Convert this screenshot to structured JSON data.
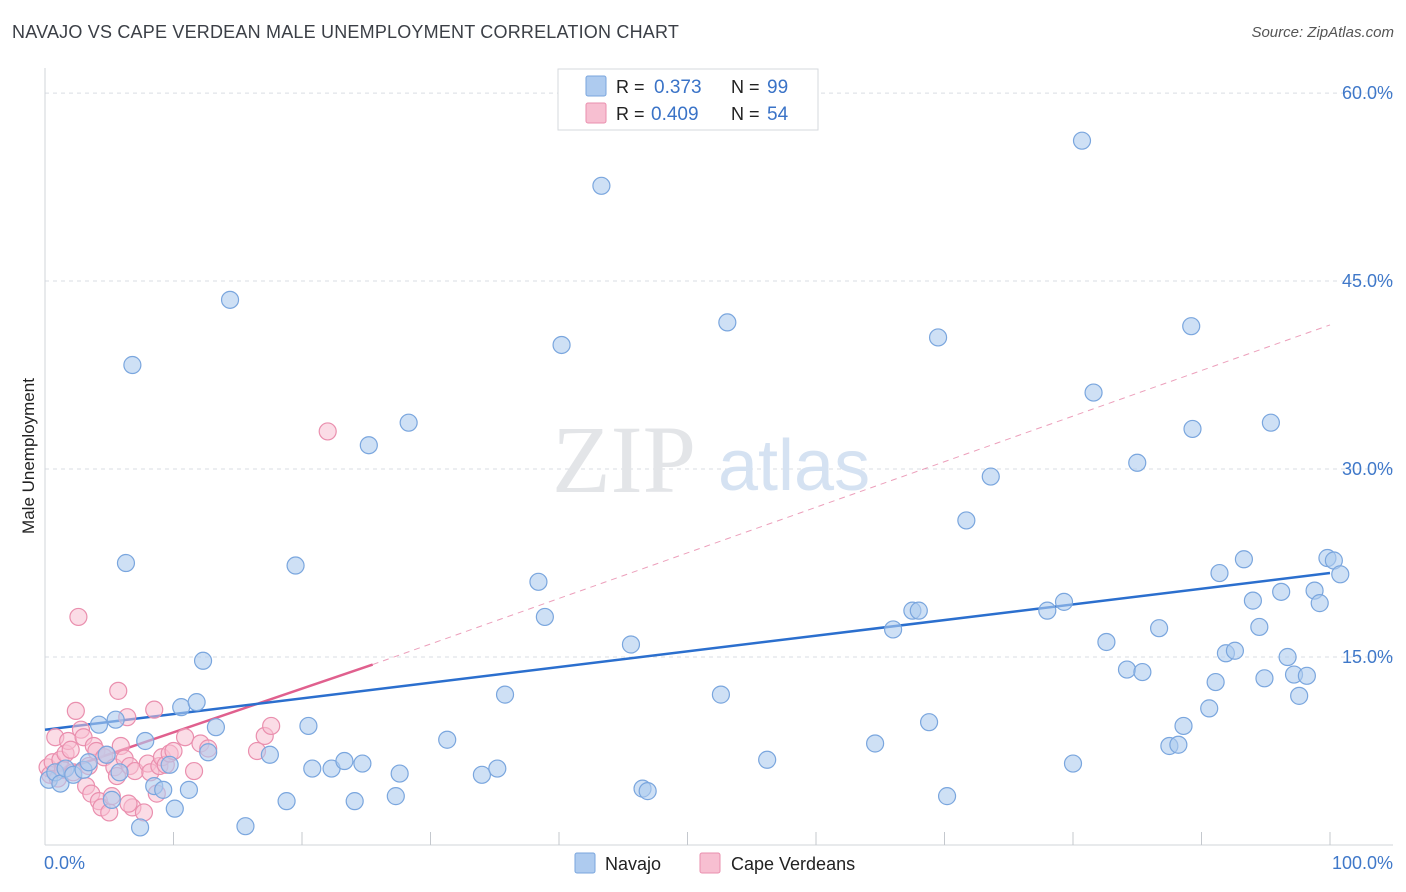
{
  "title": "NAVAJO VS CAPE VERDEAN MALE UNEMPLOYMENT CORRELATION CHART",
  "source": "Source: ZipAtlas.com",
  "watermark": {
    "zip": "ZIP",
    "atlas": "atlas"
  },
  "colors": {
    "navajo_fill": "#aecbef",
    "navajo_stroke": "#7aa6de",
    "navajo_line": "#2b6fce",
    "cape_fill": "#f7bfd1",
    "cape_stroke": "#ea8fae",
    "cape_line": "#e0608e",
    "tick_text": "#3f78c9",
    "grid": "#d9dde3"
  },
  "legend_top": {
    "rows": [
      {
        "r_label": "R =",
        "r_value": "0.373",
        "n_label": "N =",
        "n_value": "99"
      },
      {
        "r_label": "R =",
        "r_value": "0.409",
        "n_label": "N =",
        "n_value": "54"
      }
    ]
  },
  "legend_bottom": {
    "navajo": "Navajo",
    "cape": "Cape Verdeans"
  },
  "chart_data": {
    "type": "scatter",
    "title": "NAVAJO VS CAPE VERDEAN MALE UNEMPLOYMENT CORRELATION CHART",
    "xlabel": "",
    "ylabel": "Male Unemployment",
    "xlim": [
      0,
      100
    ],
    "ylim": [
      0,
      62
    ],
    "x_tick_labels": [
      "0.0%",
      "100.0%"
    ],
    "y_ticks": [
      15,
      30,
      45,
      60
    ],
    "y_tick_labels": [
      "15.0%",
      "30.0%",
      "45.0%",
      "60.0%"
    ],
    "grid": true,
    "series": [
      {
        "name": "Navajo",
        "R": 0.373,
        "N": 99,
        "trend": {
          "x0": 0,
          "y0": 9.2,
          "x1": 100,
          "y1": 21.7,
          "style": "solid"
        },
        "points": [
          [
            0.3,
            5.2
          ],
          [
            0.8,
            5.8
          ],
          [
            1.2,
            4.9
          ],
          [
            1.6,
            6.1
          ],
          [
            2.2,
            5.6
          ],
          [
            3.0,
            6.0
          ],
          [
            3.4,
            6.6
          ],
          [
            4.2,
            9.6
          ],
          [
            4.8,
            7.2
          ],
          [
            5.2,
            3.6
          ],
          [
            5.5,
            10.0
          ],
          [
            5.8,
            5.8
          ],
          [
            6.3,
            22.5
          ],
          [
            6.8,
            38.3
          ],
          [
            7.4,
            1.4
          ],
          [
            7.8,
            8.3
          ],
          [
            8.5,
            4.7
          ],
          [
            9.2,
            4.4
          ],
          [
            9.7,
            6.4
          ],
          [
            10.1,
            2.9
          ],
          [
            10.6,
            11.0
          ],
          [
            11.2,
            4.4
          ],
          [
            11.8,
            11.4
          ],
          [
            12.3,
            14.7
          ],
          [
            12.7,
            7.4
          ],
          [
            13.3,
            9.4
          ],
          [
            14.4,
            43.5
          ],
          [
            15.6,
            1.5
          ],
          [
            17.5,
            7.2
          ],
          [
            18.8,
            3.5
          ],
          [
            19.5,
            22.3
          ],
          [
            20.5,
            9.5
          ],
          [
            20.8,
            6.1
          ],
          [
            22.3,
            6.1
          ],
          [
            23.3,
            6.7
          ],
          [
            24.1,
            3.5
          ],
          [
            24.7,
            6.5
          ],
          [
            25.2,
            31.9
          ],
          [
            27.3,
            3.9
          ],
          [
            27.6,
            5.7
          ],
          [
            28.3,
            33.7
          ],
          [
            31.3,
            8.4
          ],
          [
            34.0,
            5.6
          ],
          [
            35.2,
            6.1
          ],
          [
            35.8,
            12.0
          ],
          [
            38.4,
            21.0
          ],
          [
            38.9,
            18.2
          ],
          [
            40.2,
            39.9
          ],
          [
            43.3,
            52.6
          ],
          [
            45.6,
            16.0
          ],
          [
            46.5,
            4.5
          ],
          [
            46.9,
            4.3
          ],
          [
            52.6,
            12.0
          ],
          [
            53.1,
            41.7
          ],
          [
            56.2,
            6.8
          ],
          [
            64.6,
            8.1
          ],
          [
            66.0,
            17.2
          ],
          [
            67.5,
            18.7
          ],
          [
            68.0,
            18.7
          ],
          [
            68.8,
            9.8
          ],
          [
            69.5,
            40.5
          ],
          [
            70.2,
            3.9
          ],
          [
            71.7,
            25.9
          ],
          [
            73.6,
            29.4
          ],
          [
            78.0,
            18.7
          ],
          [
            79.3,
            19.4
          ],
          [
            80.0,
            6.5
          ],
          [
            80.7,
            56.2
          ],
          [
            81.6,
            36.1
          ],
          [
            82.6,
            16.2
          ],
          [
            84.2,
            14.0
          ],
          [
            85.0,
            30.5
          ],
          [
            85.4,
            13.8
          ],
          [
            86.7,
            17.3
          ],
          [
            87.5,
            7.9
          ],
          [
            88.2,
            8.0
          ],
          [
            88.6,
            9.5
          ],
          [
            89.2,
            41.4
          ],
          [
            89.3,
            33.2
          ],
          [
            90.6,
            10.9
          ],
          [
            91.1,
            13.0
          ],
          [
            91.4,
            21.7
          ],
          [
            91.9,
            15.3
          ],
          [
            92.6,
            15.5
          ],
          [
            93.3,
            22.8
          ],
          [
            94.0,
            19.5
          ],
          [
            94.5,
            17.4
          ],
          [
            94.9,
            13.3
          ],
          [
            95.4,
            33.7
          ],
          [
            96.2,
            20.2
          ],
          [
            96.7,
            15.0
          ],
          [
            97.2,
            13.6
          ],
          [
            97.6,
            11.9
          ],
          [
            98.2,
            13.5
          ],
          [
            98.8,
            20.3
          ],
          [
            99.2,
            19.3
          ],
          [
            99.8,
            22.9
          ],
          [
            100.3,
            22.7
          ],
          [
            100.8,
            21.6
          ]
        ]
      },
      {
        "name": "Cape Verdeans",
        "R": 0.409,
        "N": 54,
        "trend": {
          "x0": 0,
          "y0": 5.5,
          "x1": 25.5,
          "y1": 14.4,
          "style": "solid",
          "extended_to": {
            "x": 100,
            "y": 41.5,
            "style": "dashed"
          }
        },
        "points": [
          [
            0.2,
            6.2
          ],
          [
            0.4,
            5.6
          ],
          [
            0.6,
            6.6
          ],
          [
            0.8,
            8.6
          ],
          [
            1.0,
            5.3
          ],
          [
            1.2,
            6.8
          ],
          [
            1.4,
            6.0
          ],
          [
            1.6,
            7.3
          ],
          [
            1.8,
            8.3
          ],
          [
            2.0,
            7.6
          ],
          [
            2.2,
            5.8
          ],
          [
            2.4,
            10.7
          ],
          [
            2.6,
            18.2
          ],
          [
            2.8,
            9.2
          ],
          [
            3.0,
            8.6
          ],
          [
            3.2,
            4.7
          ],
          [
            3.4,
            6.3
          ],
          [
            3.6,
            4.1
          ],
          [
            3.8,
            7.9
          ],
          [
            4.0,
            7.5
          ],
          [
            4.2,
            3.5
          ],
          [
            4.4,
            3.0
          ],
          [
            4.6,
            7.0
          ],
          [
            4.8,
            7.2
          ],
          [
            5.0,
            2.6
          ],
          [
            5.2,
            3.9
          ],
          [
            5.4,
            6.2
          ],
          [
            5.6,
            5.5
          ],
          [
            5.7,
            12.3
          ],
          [
            5.9,
            7.9
          ],
          [
            6.2,
            6.9
          ],
          [
            6.4,
            10.2
          ],
          [
            6.6,
            6.3
          ],
          [
            6.8,
            3.0
          ],
          [
            7.0,
            5.9
          ],
          [
            7.7,
            2.6
          ],
          [
            8.0,
            6.5
          ],
          [
            8.2,
            5.8
          ],
          [
            8.5,
            10.8
          ],
          [
            8.7,
            4.1
          ],
          [
            8.9,
            6.3
          ],
          [
            9.1,
            7.0
          ],
          [
            9.4,
            6.4
          ],
          [
            9.7,
            7.3
          ],
          [
            10.0,
            7.5
          ],
          [
            10.9,
            8.6
          ],
          [
            11.6,
            5.9
          ],
          [
            12.1,
            8.1
          ],
          [
            12.7,
            7.7
          ],
          [
            16.5,
            7.5
          ],
          [
            17.1,
            8.7
          ],
          [
            17.6,
            9.5
          ],
          [
            22.0,
            33.0
          ],
          [
            6.5,
            3.3
          ]
        ]
      }
    ]
  }
}
